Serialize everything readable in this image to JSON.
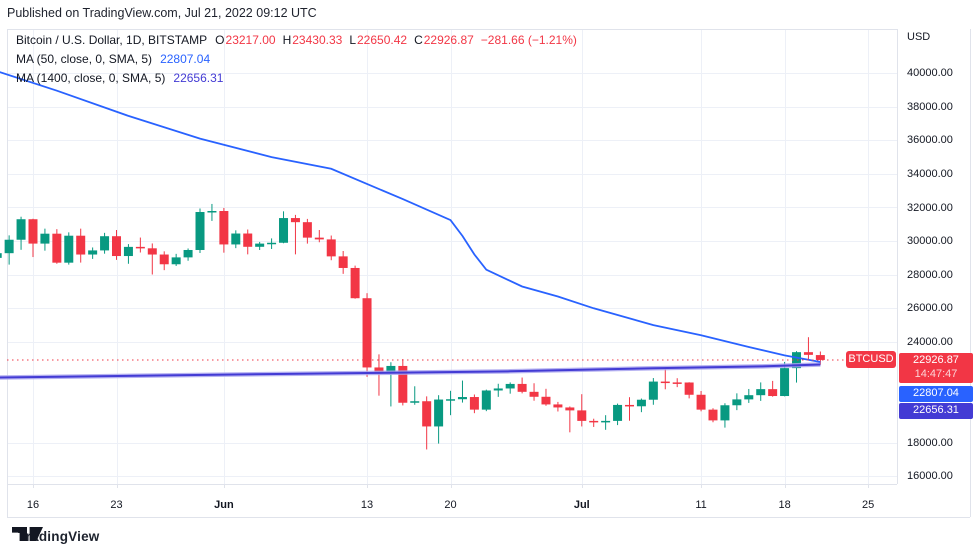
{
  "banner": {
    "text": "Published on TradingView.com, Jul 21, 2022 09:12 UTC"
  },
  "legend": {
    "title": "Bitcoin / U.S. Dollar, 1D, BITSTAMP",
    "ohlc": {
      "o_label": "O",
      "o": "23217.00",
      "h_label": "H",
      "h": "23430.33",
      "l_label": "L",
      "l": "22650.42",
      "c_label": "C",
      "c": "22926.87",
      "change": "−281.66 (−1.21%)"
    },
    "ma50": {
      "label": "MA (50, close, 0, SMA, 5)",
      "value": "22807.04"
    },
    "ma1400": {
      "label": "MA (1400, close, 0, SMA, 5)",
      "value": "22656.31"
    }
  },
  "price_axis": {
    "currency_label": "USD",
    "ticks": [
      {
        "label": "40000.00",
        "value": 40000
      },
      {
        "label": "38000.00",
        "value": 38000
      },
      {
        "label": "36000.00",
        "value": 36000
      },
      {
        "label": "34000.00",
        "value": 34000
      },
      {
        "label": "32000.00",
        "value": 32000
      },
      {
        "label": "30000.00",
        "value": 30000
      },
      {
        "label": "28000.00",
        "value": 28000
      },
      {
        "label": "26000.00",
        "value": 26000
      },
      {
        "label": "24000.00",
        "value": 24000
      },
      {
        "label": "18000.00",
        "value": 18000
      },
      {
        "label": "16000.00",
        "value": 16000
      }
    ],
    "chips": [
      {
        "name": "last-price-chip",
        "lines": [
          "22926.87",
          "14:47:47"
        ],
        "color": "#F23645"
      },
      {
        "name": "ma50-chip",
        "lines": [
          "22807.04"
        ],
        "color": "#2962FF"
      },
      {
        "name": "ma1400-chip",
        "lines": [
          "22656.31"
        ],
        "color": "#433BD4"
      }
    ]
  },
  "time_axis": [
    {
      "label": "16",
      "day": 3,
      "bold": false
    },
    {
      "label": "23",
      "day": 10,
      "bold": false
    },
    {
      "label": "Jun",
      "day": 19,
      "bold": true
    },
    {
      "label": "13",
      "day": 31,
      "bold": false
    },
    {
      "label": "20",
      "day": 38,
      "bold": false
    },
    {
      "label": "Jul",
      "day": 49,
      "bold": true
    },
    {
      "label": "11",
      "day": 59,
      "bold": false
    },
    {
      "label": "18",
      "day": 66,
      "bold": false
    },
    {
      "label": "25",
      "day": 73,
      "bold": false
    }
  ],
  "symbol_chip": {
    "label": "BTCUSD",
    "price": 22926.87,
    "color": "#F23645"
  },
  "footer": {
    "brand": "TradingView"
  },
  "chart_data": {
    "type": "candlestick",
    "title": "Bitcoin / U.S. Dollar, 1D, BITSTAMP",
    "ylabel": "USD",
    "timeframe": "1D",
    "axis": {
      "price_top": 42620,
      "price_bottom": 15545,
      "tick_step": 2000
    },
    "grid": true,
    "colors": {
      "up": "#089981",
      "down": "#F23645",
      "ma50": "#2962FF",
      "ma1400": "#433BD4",
      "ma1400_halo": "#A9A4EE",
      "grid": "#EDF0F7",
      "border": "#E0E3EB",
      "text": "#131722"
    },
    "last_price": 22926.87,
    "dates": [
      "2022-05-13",
      "2022-05-14",
      "2022-05-15",
      "2022-05-16",
      "2022-05-17",
      "2022-05-18",
      "2022-05-19",
      "2022-05-20",
      "2022-05-21",
      "2022-05-22",
      "2022-05-23",
      "2022-05-24",
      "2022-05-25",
      "2022-05-26",
      "2022-05-27",
      "2022-05-28",
      "2022-05-29",
      "2022-05-30",
      "2022-05-31",
      "2022-06-01",
      "2022-06-02",
      "2022-06-03",
      "2022-06-04",
      "2022-06-05",
      "2022-06-06",
      "2022-06-07",
      "2022-06-08",
      "2022-06-09",
      "2022-06-10",
      "2022-06-11",
      "2022-06-12",
      "2022-06-13",
      "2022-06-14",
      "2022-06-15",
      "2022-06-16",
      "2022-06-17",
      "2022-06-18",
      "2022-06-19",
      "2022-06-20",
      "2022-06-21",
      "2022-06-22",
      "2022-06-23",
      "2022-06-24",
      "2022-06-25",
      "2022-06-26",
      "2022-06-27",
      "2022-06-28",
      "2022-06-29",
      "2022-06-30",
      "2022-07-01",
      "2022-07-02",
      "2022-07-03",
      "2022-07-04",
      "2022-07-05",
      "2022-07-06",
      "2022-07-07",
      "2022-07-08",
      "2022-07-09",
      "2022-07-10",
      "2022-07-11",
      "2022-07-12",
      "2022-07-13",
      "2022-07-14",
      "2022-07-15",
      "2022-07-16",
      "2022-07-17",
      "2022-07-18",
      "2022-07-19",
      "2022-07-20",
      "2022-07-21"
    ],
    "candles": [
      [
        29000,
        30280,
        28700,
        29280
      ],
      [
        29280,
        30340,
        28600,
        30080
      ],
      [
        30080,
        31450,
        29480,
        31300
      ],
      [
        31300,
        31330,
        29050,
        29850
      ],
      [
        29850,
        30740,
        29430,
        30440
      ],
      [
        30440,
        30710,
        28650,
        28715
      ],
      [
        28715,
        30520,
        28600,
        30320
      ],
      [
        30320,
        30740,
        28720,
        29200
      ],
      [
        29200,
        29620,
        28940,
        29445
      ],
      [
        29445,
        30490,
        29250,
        30290
      ],
      [
        30290,
        30660,
        28880,
        29110
      ],
      [
        29110,
        29820,
        28650,
        29655
      ],
      [
        29655,
        30210,
        29320,
        29570
      ],
      [
        29570,
        29860,
        28010,
        29200
      ],
      [
        29200,
        29390,
        28270,
        28620
      ],
      [
        28620,
        29240,
        28520,
        29030
      ],
      [
        29030,
        29560,
        28830,
        29470
      ],
      [
        29470,
        31940,
        29290,
        31730
      ],
      [
        31730,
        32210,
        31200,
        31790
      ],
      [
        31790,
        31970,
        29310,
        29800
      ],
      [
        29800,
        30640,
        29580,
        30450
      ],
      [
        30450,
        30690,
        29210,
        29660
      ],
      [
        29660,
        29950,
        29470,
        29850
      ],
      [
        29850,
        30160,
        29530,
        29900
      ],
      [
        29900,
        31770,
        29870,
        31370
      ],
      [
        31370,
        31560,
        29210,
        31125
      ],
      [
        31125,
        31320,
        29850,
        30205
      ],
      [
        30205,
        30660,
        29930,
        30100
      ],
      [
        30100,
        30330,
        28860,
        29090
      ],
      [
        29090,
        29410,
        28050,
        28400
      ],
      [
        28400,
        28540,
        26570,
        26600
      ],
      [
        26600,
        26900,
        21920,
        22480
      ],
      [
        22480,
        23260,
        20800,
        22130
      ],
      [
        22130,
        22790,
        20160,
        22570
      ],
      [
        22570,
        22980,
        20220,
        20380
      ],
      [
        20380,
        21360,
        20260,
        20470
      ],
      [
        20470,
        20760,
        17600,
        18970
      ],
      [
        18970,
        20830,
        17950,
        20570
      ],
      [
        20570,
        21090,
        19640,
        20590
      ],
      [
        20590,
        21700,
        20390,
        20720
      ],
      [
        20720,
        20870,
        19760,
        19970
      ],
      [
        19970,
        21160,
        19880,
        21110
      ],
      [
        21110,
        21510,
        20730,
        21230
      ],
      [
        21230,
        21590,
        20920,
        21500
      ],
      [
        21500,
        21880,
        20940,
        21030
      ],
      [
        21030,
        21540,
        20500,
        20735
      ],
      [
        20735,
        21210,
        20200,
        20280
      ],
      [
        20280,
        20430,
        19860,
        20100
      ],
      [
        20100,
        20160,
        18620,
        19925
      ],
      [
        19925,
        20890,
        18970,
        19300
      ],
      [
        19300,
        19430,
        18940,
        19250
      ],
      [
        19250,
        19640,
        18770,
        19300
      ],
      [
        19300,
        20330,
        19050,
        20250
      ],
      [
        20250,
        20710,
        19310,
        20170
      ],
      [
        20170,
        20630,
        19820,
        20560
      ],
      [
        20560,
        21850,
        20260,
        21640
      ],
      [
        21640,
        22400,
        21180,
        21590
      ],
      [
        21590,
        21840,
        21310,
        21585
      ],
      [
        21585,
        21600,
        20640,
        20855
      ],
      [
        20855,
        21080,
        19870,
        19970
      ],
      [
        19970,
        20050,
        19220,
        19330
      ],
      [
        19330,
        20350,
        18900,
        20230
      ],
      [
        20230,
        20940,
        19940,
        20580
      ],
      [
        20580,
        21200,
        20370,
        20830
      ],
      [
        20830,
        21590,
        20490,
        21190
      ],
      [
        21190,
        21680,
        20740,
        20780
      ],
      [
        20780,
        22810,
        20760,
        22440
      ],
      [
        22440,
        23450,
        21580,
        23390
      ],
      [
        23390,
        24280,
        22910,
        23230
      ],
      [
        23217.0,
        23430.33,
        22650.42,
        22926.87
      ]
    ],
    "series": [
      {
        "name": "MA (50, close, 0, SMA, 5)",
        "last_value": 22807.04,
        "points": [
          [
            0,
            40100
          ],
          [
            5,
            38950
          ],
          [
            11,
            37450
          ],
          [
            17,
            36100
          ],
          [
            23,
            35000
          ],
          [
            28,
            34300
          ],
          [
            34,
            32500
          ],
          [
            38,
            31250
          ],
          [
            39,
            30300
          ],
          [
            40,
            29200
          ],
          [
            41,
            28300
          ],
          [
            44,
            27300
          ],
          [
            47,
            26700
          ],
          [
            50,
            26000
          ],
          [
            55,
            25000
          ],
          [
            59,
            24400
          ],
          [
            63,
            23700
          ],
          [
            66,
            23200
          ],
          [
            69,
            22807.04
          ]
        ]
      },
      {
        "name": "MA (1400, close, 0, SMA, 5)",
        "last_value": 22656.31,
        "points": [
          [
            0,
            21880
          ],
          [
            15,
            22020
          ],
          [
            31,
            22150
          ],
          [
            43,
            22250
          ],
          [
            55,
            22430
          ],
          [
            64,
            22540
          ],
          [
            69,
            22656.31
          ]
        ]
      }
    ]
  }
}
